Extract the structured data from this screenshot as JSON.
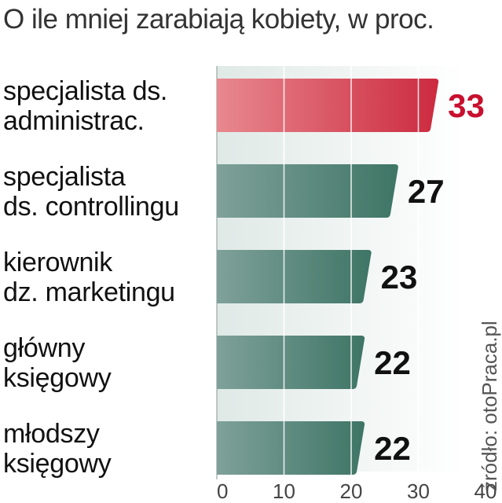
{
  "chart_data": {
    "type": "bar",
    "orientation": "horizontal",
    "title": "O ile mniej zarabiają kobiety, w proc.",
    "categories": [
      [
        "specjalista ds.",
        "administrac."
      ],
      [
        "specjalista",
        "ds. controllingu"
      ],
      [
        "kierownik",
        "dz. marketingu"
      ],
      [
        "główny",
        "księgowy"
      ],
      [
        "młodszy",
        "księgowy"
      ]
    ],
    "values": [
      33,
      27,
      23,
      22,
      22
    ],
    "value_labels": [
      "33",
      "27",
      "23",
      "22",
      "22"
    ],
    "highlight_index": 0,
    "xlim": [
      0,
      40
    ],
    "xticks": [
      "0",
      "10",
      "20",
      "30",
      "40"
    ],
    "grid": true,
    "source": "źródło: otoPraca.pl",
    "colors": {
      "highlight_bar": "#cc2a3f",
      "highlight_bar_light": "#e8888f",
      "bar": "#3e7565",
      "bar_light": "#7fa19a",
      "highlight_text": "#c8102e",
      "plot_background": "#dfe9e6"
    }
  }
}
